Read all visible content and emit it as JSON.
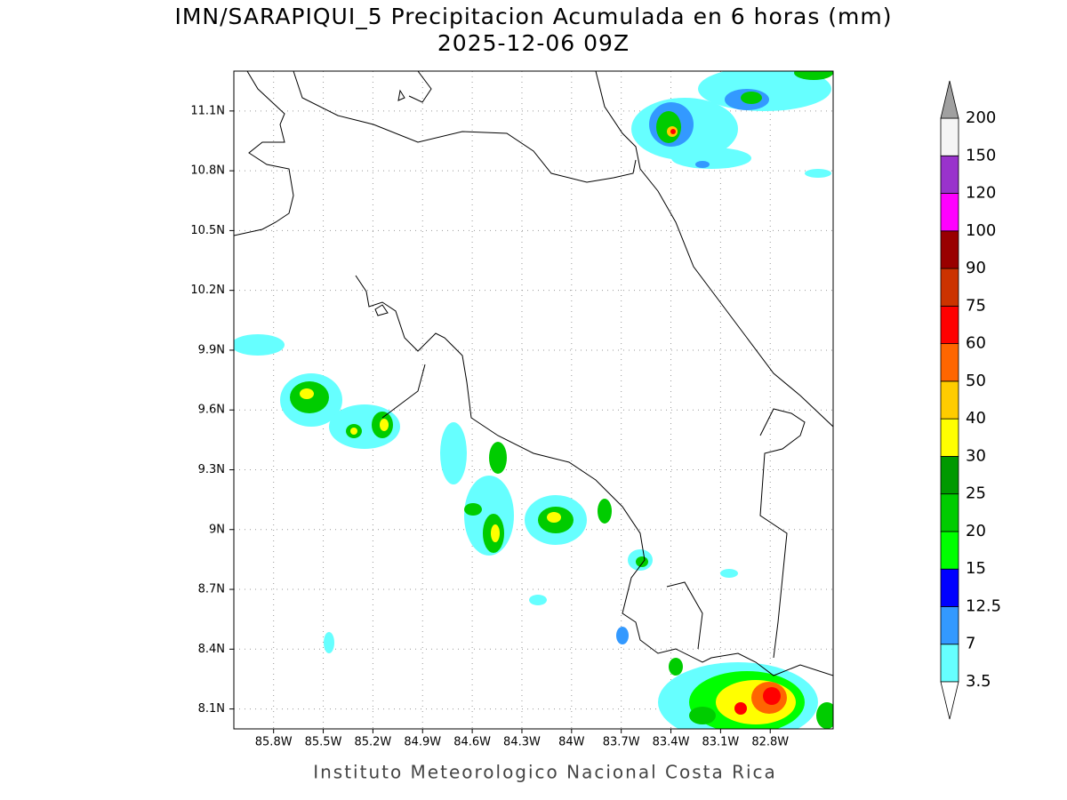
{
  "title": "IMN/SARAPIQUI_5 Precipitacion Acumulada en 6 horas (mm)",
  "subtitle": "2025-12-06 09Z",
  "footer": "Instituto Meteorologico Nacional Costa Rica",
  "map": {
    "xlim": [
      -86.04,
      -82.42
    ],
    "ylim": [
      8.0,
      11.3
    ],
    "grid": true,
    "xticks": [
      {
        "value": -85.8,
        "label": "85.8W"
      },
      {
        "value": -85.5,
        "label": "85.5W"
      },
      {
        "value": -85.2,
        "label": "85.2W"
      },
      {
        "value": -84.9,
        "label": "84.9W"
      },
      {
        "value": -84.6,
        "label": "84.6W"
      },
      {
        "value": -84.3,
        "label": "84.3W"
      },
      {
        "value": -84.0,
        "label": "84W"
      },
      {
        "value": -83.7,
        "label": "83.7W"
      },
      {
        "value": -83.4,
        "label": "83.4W"
      },
      {
        "value": -83.1,
        "label": "83.1W"
      },
      {
        "value": -82.8,
        "label": "82.8W"
      }
    ],
    "yticks": [
      {
        "value": 8.1,
        "label": "8.1N"
      },
      {
        "value": 8.4,
        "label": "8.4N"
      },
      {
        "value": 8.7,
        "label": "8.7N"
      },
      {
        "value": 9.0,
        "label": "9N"
      },
      {
        "value": 9.3,
        "label": "9.3N"
      },
      {
        "value": 9.6,
        "label": "9.6N"
      },
      {
        "value": 9.9,
        "label": "9.9N"
      },
      {
        "value": 10.2,
        "label": "10.2N"
      },
      {
        "value": 10.5,
        "label": "10.5N"
      },
      {
        "value": 10.8,
        "label": "10.8N"
      },
      {
        "value": 11.1,
        "label": "11.1N"
      }
    ]
  },
  "colorbar": {
    "levels": [
      3.5,
      7,
      12.5,
      15,
      20,
      25,
      30,
      40,
      50,
      60,
      75,
      90,
      100,
      120,
      150,
      200
    ],
    "colors": [
      "#ffffff",
      "#66ffff",
      "#3399ff",
      "#0000ff",
      "#00ff00",
      "#00cc00",
      "#009900",
      "#ffff00",
      "#ffcc00",
      "#ff6600",
      "#ff0000",
      "#cc3300",
      "#990000",
      "#ff00ff",
      "#9933cc",
      "#f5f5f5",
      "#a0a0a0"
    ]
  }
}
